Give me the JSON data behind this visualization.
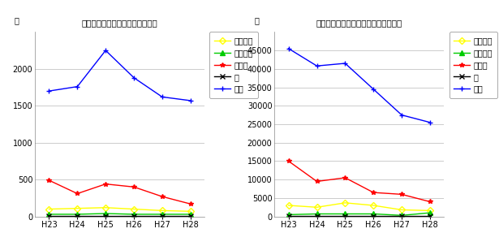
{
  "years": [
    "H23",
    "H24",
    "H25",
    "H26",
    "H27",
    "H28"
  ],
  "chart1": {
    "title": "集団健康教育開催回数（熊本県）",
    "ylabel": "回",
    "series": {
      "歯周疾患": {
        "values": [
          100,
          110,
          120,
          100,
          80,
          70
        ],
        "color": "#FFFF00",
        "marker": "D",
        "linestyle": "-"
      },
      "骨疙髀症": {
        "values": [
          30,
          30,
          40,
          30,
          30,
          30
        ],
        "color": "#00CC00",
        "marker": "^",
        "linestyle": "-"
      },
      "病態別": {
        "values": [
          490,
          310,
          440,
          400,
          270,
          170
        ],
        "color": "#FF0000",
        "marker": "*",
        "linestyle": "-"
      },
      "薬": {
        "values": [
          5,
          5,
          5,
          5,
          5,
          5
        ],
        "color": "#000000",
        "marker": "x",
        "linestyle": "-"
      },
      "一般": {
        "values": [
          1700,
          1760,
          2250,
          1880,
          1620,
          1570
        ],
        "color": "#0000FF",
        "marker": "+",
        "linestyle": "-"
      }
    },
    "ylim": [
      0,
      2500
    ],
    "yticks": [
      0,
      500,
      1000,
      1500,
      2000
    ]
  },
  "chart2": {
    "title": "集団健康教育参加延べ人数（熊本県）",
    "ylabel": "人",
    "series": {
      "歯周疾患": {
        "values": [
          3000,
          2500,
          3700,
          3000,
          1800,
          1600
        ],
        "color": "#FFFF00",
        "marker": "D",
        "linestyle": "-"
      },
      "骨疙髀症": {
        "values": [
          500,
          700,
          700,
          700,
          300,
          1000
        ],
        "color": "#00CC00",
        "marker": "^",
        "linestyle": "-"
      },
      "病態別": {
        "values": [
          15000,
          9500,
          10500,
          6500,
          6000,
          4000
        ],
        "color": "#FF0000",
        "marker": "*",
        "linestyle": "-"
      },
      "薬": {
        "values": [
          100,
          100,
          100,
          100,
          100,
          100
        ],
        "color": "#000000",
        "marker": "x",
        "linestyle": "-"
      },
      "一般": {
        "values": [
          45500,
          40800,
          41500,
          34500,
          27500,
          25500
        ],
        "color": "#0000FF",
        "marker": "+",
        "linestyle": "-"
      }
    },
    "ylim": [
      0,
      50000
    ],
    "yticks": [
      0,
      5000,
      10000,
      15000,
      20000,
      25000,
      30000,
      35000,
      40000,
      45000
    ]
  },
  "legend_order": [
    "歯周疾患",
    "骨疙髀症",
    "病態別",
    "薬",
    "一般"
  ],
  "bg_color": "#FFFFFF",
  "grid_color": "#CCCCCC"
}
